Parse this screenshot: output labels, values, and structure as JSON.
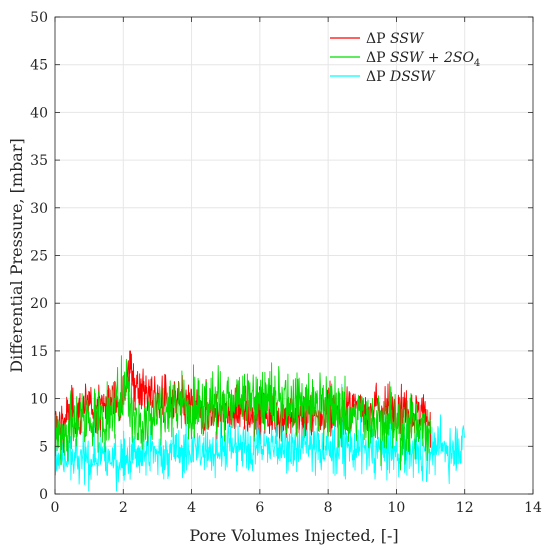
{
  "chart_data": {
    "type": "line",
    "xlabel": "Pore Volumes Injected, [-]",
    "ylabel": "Differential Pressure, [mbar]",
    "xlim": [
      0,
      14
    ],
    "ylim": [
      0,
      50
    ],
    "xticks": [
      "0",
      "2",
      "4",
      "6",
      "8",
      "10",
      "12",
      "14"
    ],
    "yticks": [
      "0",
      "5",
      "10",
      "15",
      "20",
      "25",
      "30",
      "35",
      "40",
      "45",
      "50"
    ],
    "grid": true,
    "legend_position": "top-right",
    "series": [
      {
        "name_prefix": "ΔP ",
        "name_math": "SSW",
        "name_sub": "",
        "color": "#ff0000",
        "x_range": [
          0,
          11
        ],
        "points": [
          [
            0,
            7
          ],
          [
            0.5,
            8.5
          ],
          [
            1,
            9
          ],
          [
            1.5,
            9.5
          ],
          [
            1.9,
            10
          ],
          [
            2.2,
            13
          ],
          [
            2.5,
            11
          ],
          [
            3,
            10
          ],
          [
            3.5,
            9.5
          ],
          [
            4,
            9
          ],
          [
            5,
            8.5
          ],
          [
            6,
            8.5
          ],
          [
            7,
            8
          ],
          [
            8,
            8.5
          ],
          [
            9,
            9
          ],
          [
            10,
            9
          ],
          [
            10.5,
            8.5
          ],
          [
            11,
            8
          ]
        ],
        "noise": 1.3
      },
      {
        "name_prefix": "ΔP ",
        "name_math": "SSW + 2SO",
        "name_sub": "4",
        "color": "#00dd00",
        "x_range": [
          0,
          11
        ],
        "points": [
          [
            0,
            6
          ],
          [
            0.5,
            7
          ],
          [
            1,
            8
          ],
          [
            1.5,
            7.5
          ],
          [
            1.8,
            9
          ],
          [
            2.05,
            12
          ],
          [
            2.3,
            8
          ],
          [
            2.6,
            7
          ],
          [
            3,
            9
          ],
          [
            4,
            9.5
          ],
          [
            5,
            9.5
          ],
          [
            6,
            10
          ],
          [
            7,
            9.5
          ],
          [
            8,
            9
          ],
          [
            9,
            8
          ],
          [
            10,
            7
          ],
          [
            11,
            7
          ]
        ],
        "noise": 1.7
      },
      {
        "name_prefix": "ΔP ",
        "name_math": "DSSW",
        "name_sub": "",
        "color": "#00ffff",
        "x_range": [
          0,
          12
        ],
        "points": [
          [
            0,
            3.5
          ],
          [
            1,
            3.5
          ],
          [
            2,
            3.8
          ],
          [
            3,
            4.2
          ],
          [
            4,
            4.5
          ],
          [
            5,
            4.8
          ],
          [
            6,
            5
          ],
          [
            7,
            5
          ],
          [
            8,
            4.8
          ],
          [
            9,
            4.8
          ],
          [
            10,
            4.5
          ],
          [
            11,
            4.5
          ],
          [
            12,
            5
          ]
        ],
        "noise": 1.4
      }
    ]
  }
}
